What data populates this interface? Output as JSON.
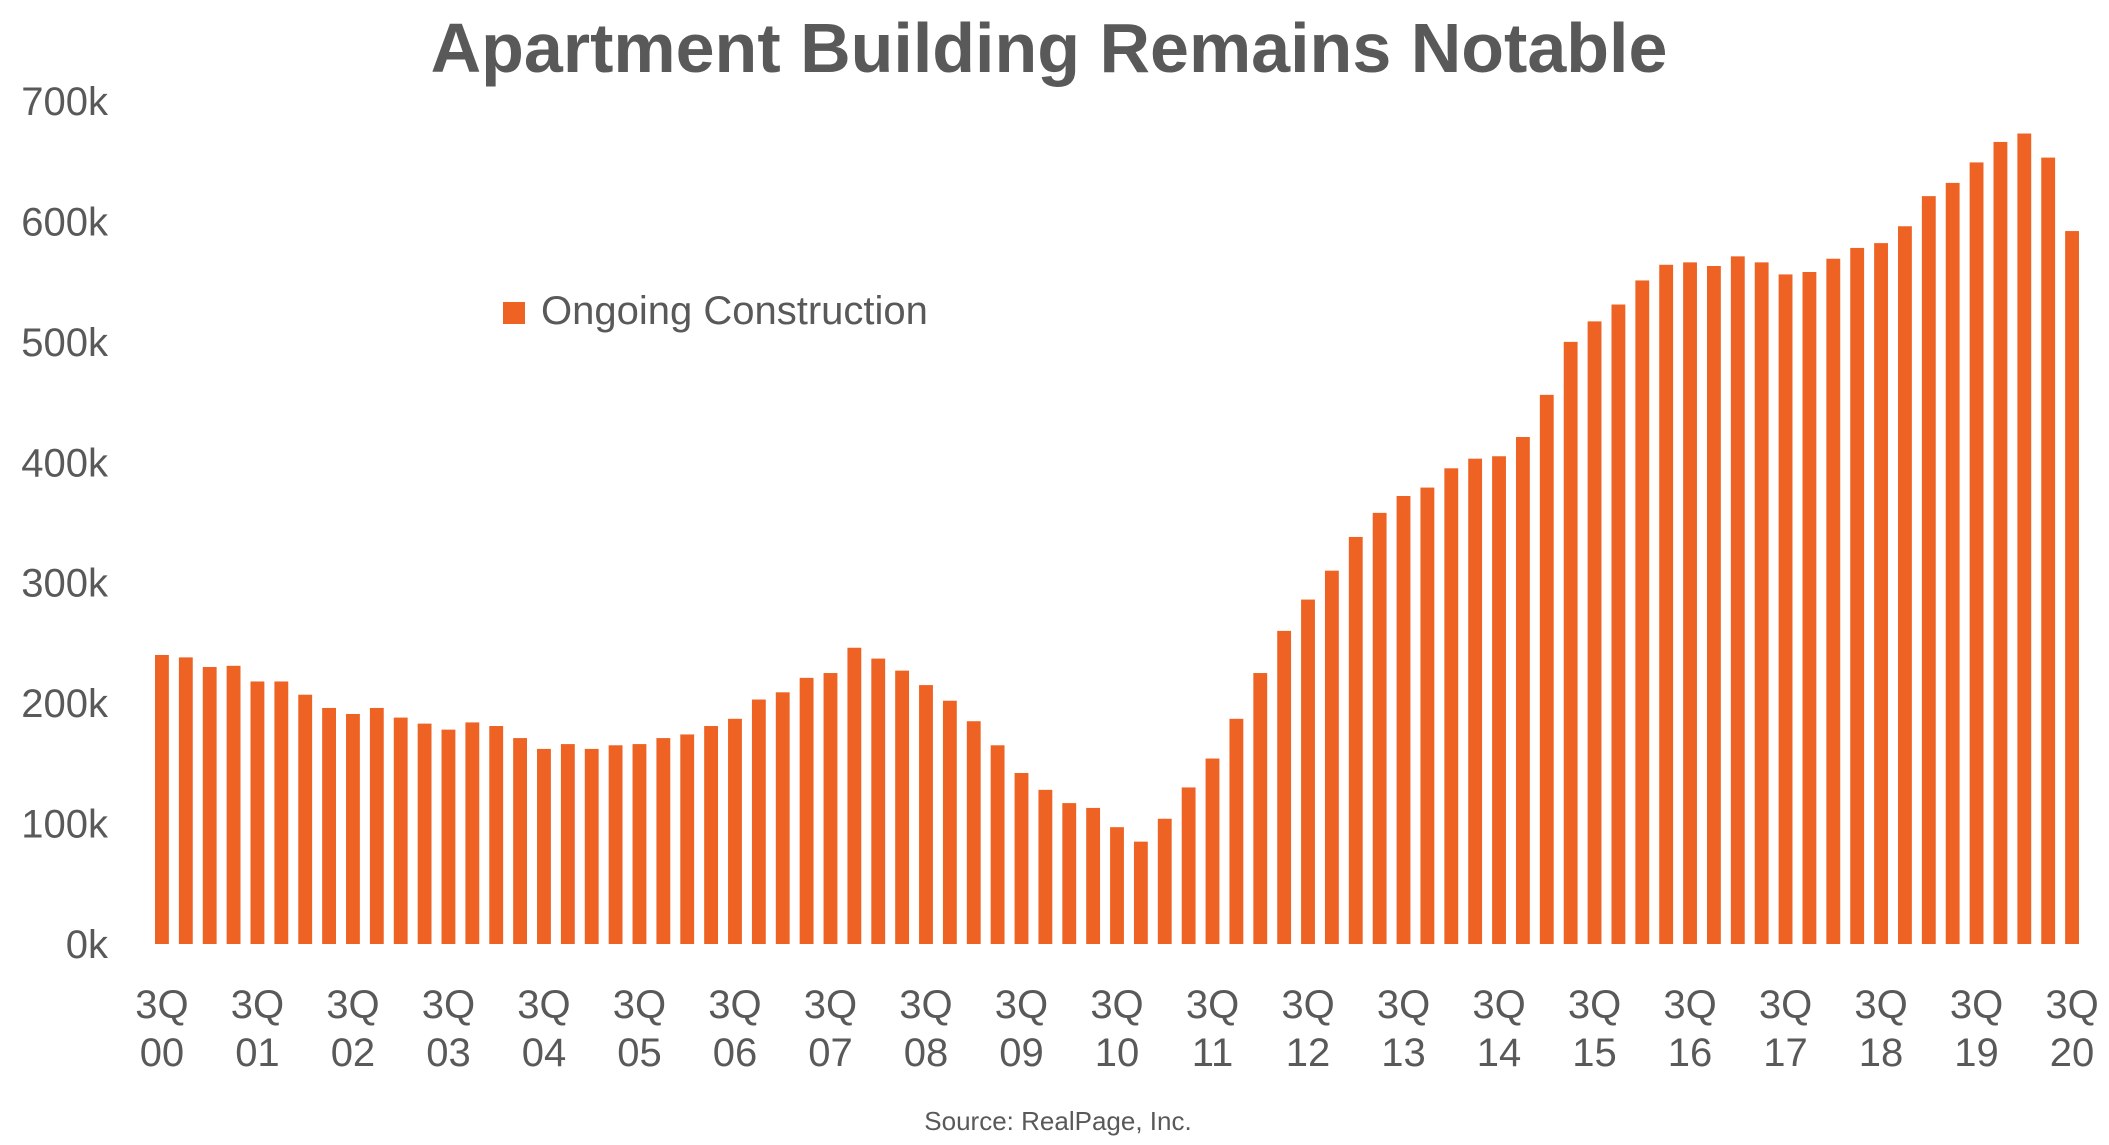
{
  "chart_data": {
    "type": "bar",
    "title": "Apartment Building Remains Notable",
    "source": "Source: RealPage, Inc.",
    "xlabel": "",
    "ylabel": "",
    "ylim": [
      0,
      700000
    ],
    "yticks": [
      "0k",
      "100k",
      "200k",
      "300k",
      "400k",
      "500k",
      "600k",
      "700k"
    ],
    "xtick_labels": [
      [
        "3Q",
        "00"
      ],
      [
        "3Q",
        "01"
      ],
      [
        "3Q",
        "02"
      ],
      [
        "3Q",
        "03"
      ],
      [
        "3Q",
        "04"
      ],
      [
        "3Q",
        "05"
      ],
      [
        "3Q",
        "06"
      ],
      [
        "3Q",
        "07"
      ],
      [
        "3Q",
        "08"
      ],
      [
        "3Q",
        "09"
      ],
      [
        "3Q",
        "10"
      ],
      [
        "3Q",
        "11"
      ],
      [
        "3Q",
        "12"
      ],
      [
        "3Q",
        "13"
      ],
      [
        "3Q",
        "14"
      ],
      [
        "3Q",
        "15"
      ],
      [
        "3Q",
        "16"
      ],
      [
        "3Q",
        "17"
      ],
      [
        "3Q",
        "18"
      ],
      [
        "3Q",
        "19"
      ],
      [
        "3Q",
        "20"
      ]
    ],
    "grid": false,
    "legend_position": "top-left",
    "series": [
      {
        "name": "Ongoing Construction",
        "color": "#ee6324",
        "categories": [
          "3Q00",
          "4Q00",
          "1Q01",
          "2Q01",
          "3Q01",
          "4Q01",
          "1Q02",
          "2Q02",
          "3Q02",
          "4Q02",
          "1Q03",
          "2Q03",
          "3Q03",
          "4Q03",
          "1Q04",
          "2Q04",
          "3Q04",
          "4Q04",
          "1Q05",
          "2Q05",
          "3Q05",
          "4Q05",
          "1Q06",
          "2Q06",
          "3Q06",
          "4Q06",
          "1Q07",
          "2Q07",
          "3Q07",
          "4Q07",
          "1Q08",
          "2Q08",
          "3Q08",
          "4Q08",
          "1Q09",
          "2Q09",
          "3Q09",
          "4Q09",
          "1Q10",
          "2Q10",
          "3Q10",
          "4Q10",
          "1Q11",
          "2Q11",
          "3Q11",
          "4Q11",
          "1Q12",
          "2Q12",
          "3Q12",
          "4Q12",
          "1Q13",
          "2Q13",
          "3Q13",
          "4Q13",
          "1Q14",
          "2Q14",
          "3Q14",
          "4Q14",
          "1Q15",
          "2Q15",
          "3Q15",
          "4Q15",
          "1Q16",
          "2Q16",
          "3Q16",
          "4Q16",
          "1Q17",
          "2Q17",
          "3Q17",
          "4Q17",
          "1Q18",
          "2Q18",
          "3Q18",
          "4Q18",
          "1Q19",
          "2Q19",
          "3Q19",
          "4Q19",
          "1Q20",
          "2Q20",
          "3Q20"
        ],
        "values": [
          240000,
          238000,
          230000,
          231000,
          218000,
          218000,
          207000,
          196000,
          191000,
          196000,
          188000,
          183000,
          178000,
          184000,
          181000,
          171000,
          162000,
          166000,
          162000,
          165000,
          166000,
          171000,
          174000,
          181000,
          187000,
          203000,
          209000,
          221000,
          225000,
          246000,
          237000,
          227000,
          215000,
          202000,
          185000,
          165000,
          142000,
          128000,
          117000,
          113000,
          97000,
          85000,
          104000,
          130000,
          154000,
          187000,
          225000,
          260000,
          286000,
          310000,
          338000,
          358000,
          372000,
          379000,
          395000,
          403000,
          405000,
          421000,
          456000,
          500000,
          517000,
          531000,
          551000,
          564000,
          566000,
          563000,
          571000,
          566000,
          556000,
          558000,
          569000,
          578000,
          582000,
          596000,
          621000,
          632000,
          649000,
          666000,
          673000,
          653000,
          592000
        ]
      }
    ]
  }
}
